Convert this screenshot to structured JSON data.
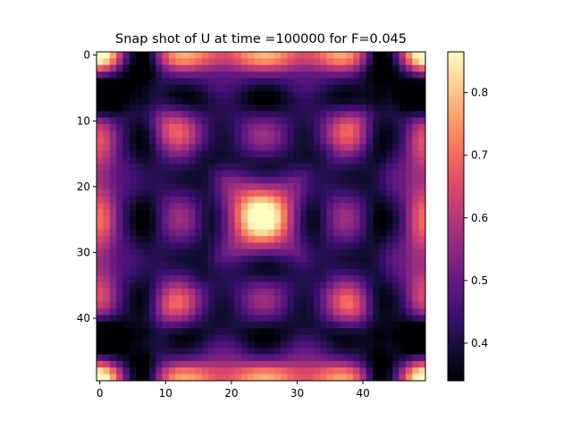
{
  "chart_data": {
    "type": "heatmap",
    "title": "Snap shot of U at time =100000 for F=0.045",
    "xlabel": "",
    "ylabel": "",
    "grid_size": [
      50,
      50
    ],
    "x_range": [
      -0.5,
      49.5
    ],
    "y_range": [
      49.5,
      -0.5
    ],
    "x_ticks": [
      0,
      10,
      20,
      30,
      40
    ],
    "y_ticks": [
      0,
      10,
      20,
      30,
      40
    ],
    "colormap": "magma",
    "colormap_stops": [
      "#000004",
      "#140e36",
      "#3b0f70",
      "#641a80",
      "#8c2981",
      "#b73779",
      "#de4968",
      "#f7705c",
      "#fe9f6d",
      "#fecf92",
      "#fcfdbf"
    ],
    "colorbar": {
      "vmin": 0.34,
      "vmax": 0.865,
      "ticks": [
        0.4,
        0.5,
        0.6,
        0.7,
        0.8
      ],
      "tick_labels": [
        "0.4",
        "0.5",
        "0.6",
        "0.7",
        "0.8"
      ]
    },
    "pattern": {
      "description": "symmetric Turing-like spots on 50x50 grid",
      "center_spot": {
        "x": 25,
        "y": 25,
        "value": 0.86
      },
      "corner_spots": [
        {
          "x": 11,
          "y": 11,
          "value": 0.65
        },
        {
          "x": 38,
          "y": 11,
          "value": 0.65
        },
        {
          "x": 11,
          "y": 38,
          "value": 0.65
        },
        {
          "x": 38,
          "y": 38,
          "value": 0.65
        }
      ],
      "edge_bands_value": 0.72,
      "background_min": 0.34
    }
  }
}
